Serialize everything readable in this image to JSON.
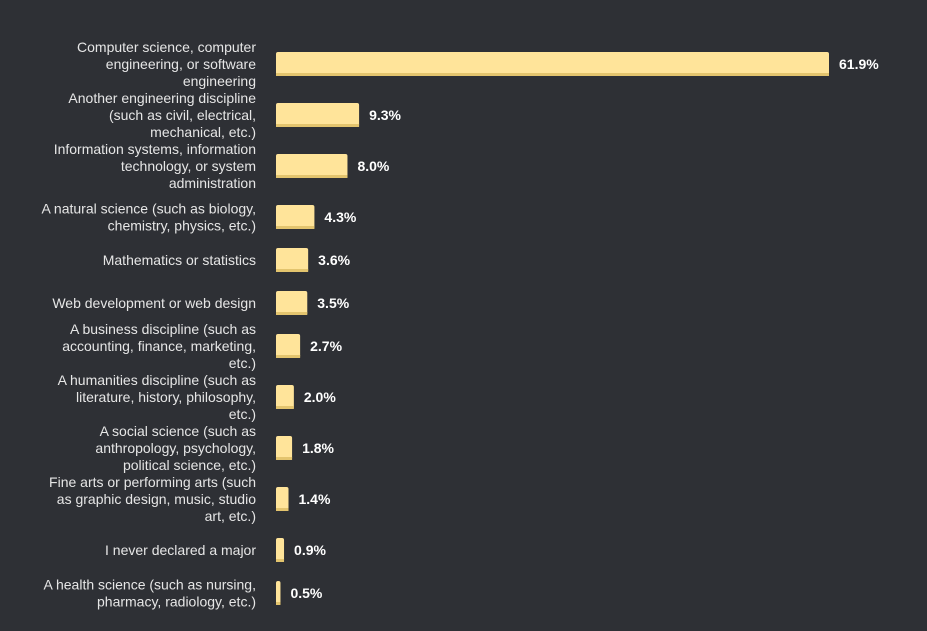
{
  "chart_data": {
    "type": "bar",
    "orientation": "horizontal",
    "title": "",
    "xlabel": "",
    "ylabel": "",
    "xlim": [
      0,
      61.9
    ],
    "grid": false,
    "legend": "none",
    "value_suffix": "%",
    "categories": [
      [
        "Computer science, computer",
        "engineering, or software",
        "engineering"
      ],
      [
        "Another engineering discipline",
        "(such as civil, electrical,",
        "mechanical, etc.)"
      ],
      [
        "Information systems, information",
        "technology, or system",
        "administration"
      ],
      [
        "A natural science (such as biology,",
        "chemistry, physics, etc.)"
      ],
      [
        "Mathematics or statistics"
      ],
      [
        "Web development or web design"
      ],
      [
        "A business discipline (such as",
        "accounting, finance, marketing,",
        "etc.)"
      ],
      [
        "A humanities discipline (such as",
        "literature, history, philosophy,",
        "etc.)"
      ],
      [
        "A social science (such as",
        "anthropology, psychology,",
        "political science, etc.)"
      ],
      [
        "Fine arts or performing arts (such",
        "as graphic design, music, studio",
        "art, etc.)"
      ],
      [
        "I never declared a major"
      ],
      [
        "A health science (such as nursing,",
        "pharmacy, radiology, etc.)"
      ]
    ],
    "values": [
      61.9,
      9.3,
      8.0,
      4.3,
      3.6,
      3.5,
      2.7,
      2.0,
      1.8,
      1.4,
      0.9,
      0.5
    ],
    "value_labels": [
      "61.9%",
      "9.3%",
      "8.0%",
      "4.3%",
      "3.6%",
      "3.5%",
      "2.7%",
      "2.0%",
      "1.8%",
      "1.4%",
      "0.9%",
      "0.5%"
    ]
  },
  "colors": {
    "background": "#2e3035",
    "bar": "#ffe49a",
    "bar_shadow": "#e3c46e",
    "category_text": "#e6e6e6",
    "value_text": "#ffffff"
  }
}
